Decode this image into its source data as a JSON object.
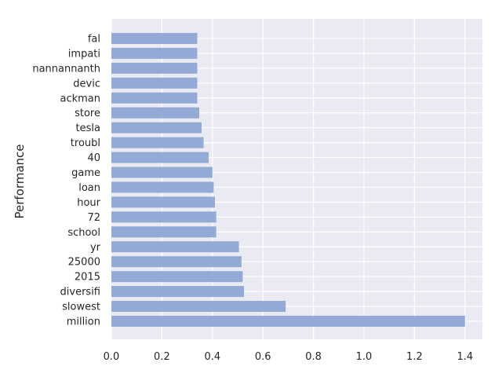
{
  "chart_data": {
    "type": "bar",
    "orientation": "horizontal",
    "ylabel": "Performance",
    "xlabel": "",
    "title": "",
    "xlim": [
      0,
      1.47
    ],
    "xticks": [
      "0.0",
      "0.2",
      "0.4",
      "0.6",
      "0.8",
      "1.0",
      "1.2",
      "1.4"
    ],
    "grid": true,
    "style": "seaborn-darkgrid",
    "bar_color": "#8fa7d4",
    "background_color": "#eaeaf2",
    "categories": [
      "million",
      "slowest",
      "diversifi",
      "2015",
      "25000",
      "yr",
      "school",
      "72",
      "hour",
      "loan",
      "game",
      "40",
      "troubl",
      "tesla",
      "store",
      "ackman",
      "devic",
      "nannannanth",
      "impati",
      "fal"
    ],
    "values": [
      1.4,
      0.69,
      0.525,
      0.52,
      0.515,
      0.505,
      0.415,
      0.415,
      0.41,
      0.405,
      0.4,
      0.385,
      0.365,
      0.357,
      0.348,
      0.34,
      0.34,
      0.34,
      0.34,
      0.34
    ]
  }
}
